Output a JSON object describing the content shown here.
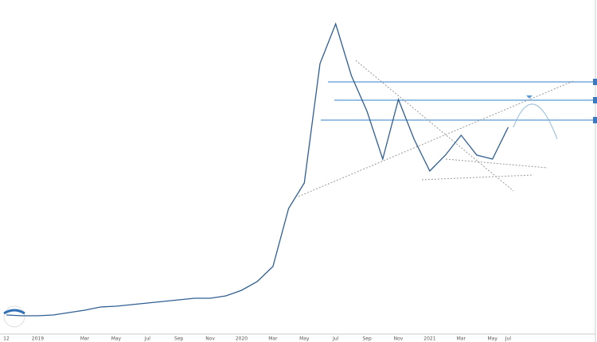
{
  "chart_data": {
    "type": "line",
    "color": "#2f5f93",
    "categories": [
      "12",
      null,
      "2019",
      null,
      null,
      "Mar",
      null,
      "May",
      null,
      "Jul",
      null,
      "Sep",
      null,
      "Nov",
      null,
      "2020",
      null,
      "Mar",
      null,
      "May",
      null,
      "Jul",
      null,
      "Sep",
      null,
      "Nov",
      null,
      "2021",
      null,
      "Mar",
      null,
      "May",
      "Jul"
    ],
    "values": [
      24,
      23,
      23,
      24,
      27,
      30,
      34,
      35,
      37,
      39,
      41,
      43,
      45,
      45,
      48,
      55,
      66,
      85,
      158,
      190,
      340,
      390,
      325,
      280,
      220,
      295,
      245,
      205,
      225,
      250,
      225,
      220,
      260
    ],
    "ylim": [
      0,
      400
    ]
  }
}
